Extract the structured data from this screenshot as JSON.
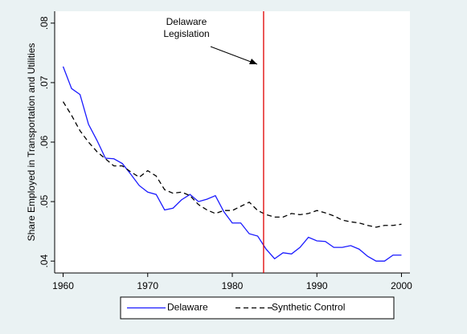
{
  "chart_data": {
    "type": "line",
    "ylabel": "Share Employed in Transportation and Utilities",
    "x": [
      1960,
      1961,
      1962,
      1963,
      1964,
      1965,
      1966,
      1967,
      1968,
      1969,
      1970,
      1971,
      1972,
      1973,
      1974,
      1975,
      1976,
      1977,
      1978,
      1979,
      1980,
      1981,
      1982,
      1983,
      1984,
      1985,
      1986,
      1987,
      1988,
      1989,
      1990,
      1991,
      1992,
      1993,
      1994,
      1995,
      1996,
      1997,
      1998,
      1999,
      2000
    ],
    "series": [
      {
        "name": "Delaware",
        "color": "#1a1aff",
        "dash": false,
        "values": [
          0.0727,
          0.069,
          0.068,
          0.063,
          0.0603,
          0.0573,
          0.0572,
          0.0564,
          0.0546,
          0.0527,
          0.0516,
          0.0512,
          0.0486,
          0.0489,
          0.0503,
          0.0512,
          0.05,
          0.0504,
          0.051,
          0.0483,
          0.0464,
          0.0464,
          0.0446,
          0.0442,
          0.042,
          0.0404,
          0.0414,
          0.0412,
          0.0423,
          0.044,
          0.0434,
          0.0433,
          0.0423,
          0.0423,
          0.0426,
          0.042,
          0.0408,
          0.04,
          0.04,
          0.041,
          0.041
        ]
      },
      {
        "name": "Synthetic Control",
        "color": "#000000",
        "dash": true,
        "values": [
          0.0668,
          0.0645,
          0.0619,
          0.06,
          0.0584,
          0.0572,
          0.056,
          0.056,
          0.055,
          0.0541,
          0.0552,
          0.0543,
          0.052,
          0.0514,
          0.0516,
          0.051,
          0.0495,
          0.0486,
          0.048,
          0.0485,
          0.0485,
          0.0492,
          0.0499,
          0.0485,
          0.0478,
          0.0474,
          0.0474,
          0.048,
          0.0478,
          0.048,
          0.0485,
          0.0481,
          0.0476,
          0.0469,
          0.0466,
          0.0464,
          0.046,
          0.0457,
          0.046,
          0.046,
          0.0462
        ]
      }
    ],
    "xlim": [
      1959,
      2001
    ],
    "ylim": [
      0.038,
      0.082
    ],
    "xticks": [
      1960,
      1970,
      1980,
      1990,
      2000
    ],
    "yticks": [
      {
        "value": 0.04,
        "label": ".04"
      },
      {
        "value": 0.05,
        "label": ".05"
      },
      {
        "value": 0.06,
        "label": ".06"
      },
      {
        "value": 0.07,
        "label": ".07"
      },
      {
        "value": 0.08,
        "label": ".08"
      }
    ],
    "xline": {
      "value": 1983.7,
      "color": "#e00000"
    },
    "annotation": [
      "Delaware",
      "Legislation"
    ],
    "grid": false,
    "legend": "bottom"
  }
}
